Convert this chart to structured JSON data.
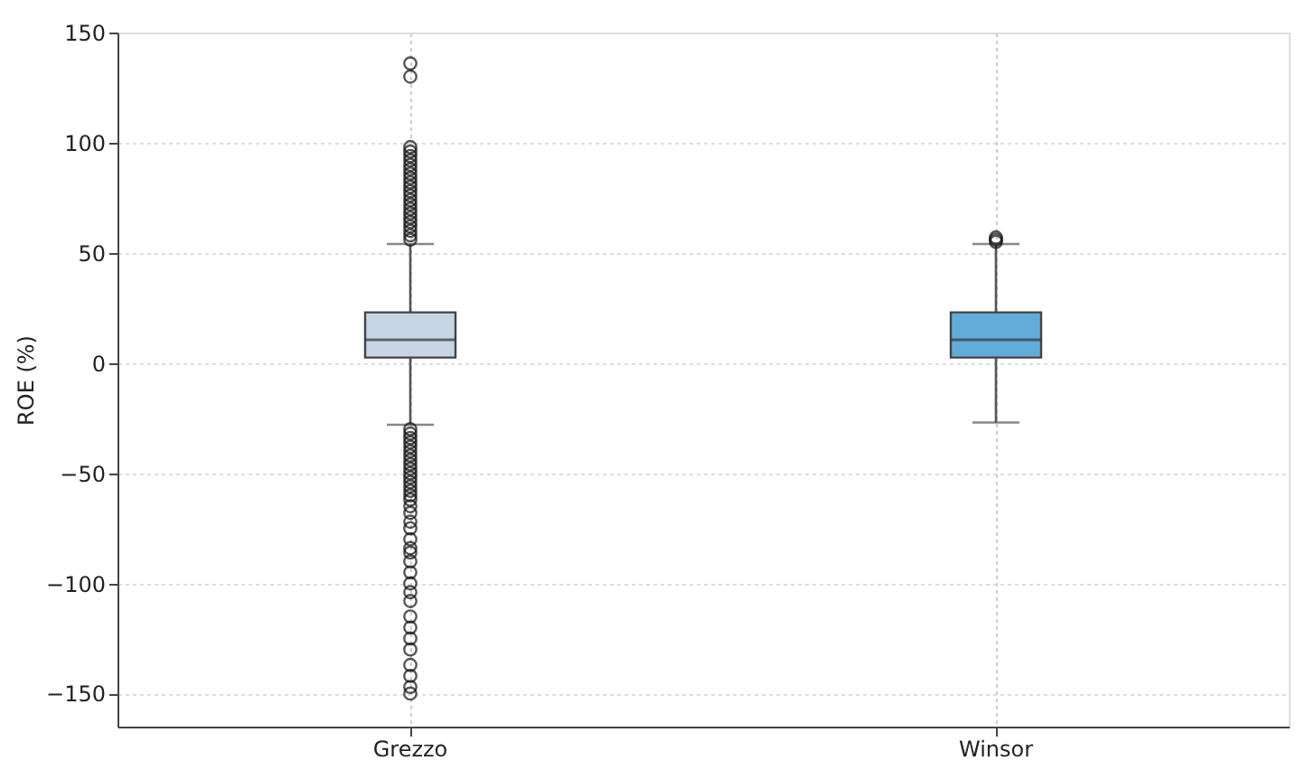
{
  "chart_data": {
    "type": "box",
    "ylabel": "ROE (%)",
    "categories": [
      "Grezzo",
      "Winsor"
    ],
    "colors": [
      "#c8d5e4",
      "#62acd9"
    ],
    "boxes": [
      {
        "low": -28,
        "q1": 2.5,
        "median": 10.5,
        "q3": 23,
        "high": 54,
        "outliers": [
          56,
          58,
          60,
          62,
          64,
          66,
          68,
          70,
          72,
          74,
          76,
          78,
          80,
          82,
          84,
          86,
          88,
          90,
          92,
          94,
          96,
          98,
          130,
          136,
          -30,
          -32,
          -34,
          -36,
          -38,
          -40,
          -42,
          -44,
          -46,
          -48,
          -50,
          -52,
          -54,
          -56,
          -58,
          -60,
          -62,
          -65,
          -68,
          -72,
          -75,
          -80,
          -84,
          -86,
          -90,
          -95,
          -100,
          -104,
          -108,
          -115,
          -120,
          -125,
          -130,
          -137,
          -142,
          -147,
          -150
        ]
      },
      {
        "low": -27,
        "q1": 2.5,
        "median": 10.5,
        "q3": 23,
        "high": 54,
        "outliers": [
          55,
          56,
          57
        ]
      }
    ],
    "ylim": [
      -165,
      150
    ],
    "yticks": [
      -150,
      -100,
      -50,
      0,
      50,
      100,
      150
    ],
    "grid": true
  }
}
